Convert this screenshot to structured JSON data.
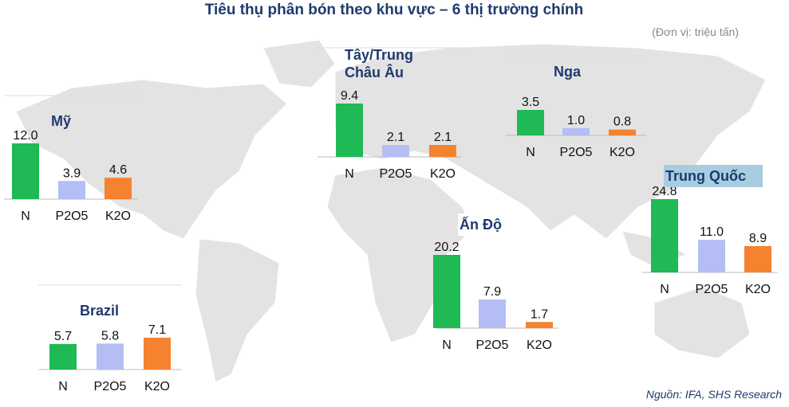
{
  "title": "Tiêu thụ phân bón theo khu vực – 6 thị trường chính",
  "unit": "(Đơn vị: triệu tấn)",
  "source": "Nguồn: IFA, SHS Research",
  "chart_data": [
    {
      "type": "bar",
      "title": "Mỹ",
      "categories": [
        "N",
        "P2O5",
        "K2O"
      ],
      "values": [
        12.0,
        3.9,
        4.6
      ],
      "value_labels": [
        "12.0",
        "3.9",
        "4.6"
      ],
      "colors": [
        "#1fb956",
        "#b4bef5",
        "#f5822f"
      ]
    },
    {
      "type": "bar",
      "title": "Tây/Trung Châu Âu",
      "categories": [
        "N",
        "P2O5",
        "K2O"
      ],
      "values": [
        9.4,
        2.1,
        2.1
      ],
      "value_labels": [
        "9.4",
        "2.1",
        "2.1"
      ],
      "colors": [
        "#1fb956",
        "#b4bef5",
        "#f5822f"
      ]
    },
    {
      "type": "bar",
      "title": "Nga",
      "categories": [
        "N",
        "P2O5",
        "K2O"
      ],
      "values": [
        3.5,
        1.0,
        0.8
      ],
      "value_labels": [
        "3.5",
        "1.0",
        "0.8"
      ],
      "colors": [
        "#1fb956",
        "#b4bef5",
        "#f5822f"
      ]
    },
    {
      "type": "bar",
      "title": "Trung Quốc",
      "categories": [
        "N",
        "P2O5",
        "K2O"
      ],
      "values": [
        24.8,
        11.0,
        8.9
      ],
      "value_labels": [
        "24.8",
        "11.0",
        "8.9"
      ],
      "colors": [
        "#1fb956",
        "#b4bef5",
        "#f5822f"
      ]
    },
    {
      "type": "bar",
      "title": "Ấn Độ",
      "categories": [
        "N",
        "P2O5",
        "K2O"
      ],
      "values": [
        20.2,
        7.9,
        1.7
      ],
      "value_labels": [
        "20.2",
        "7.9",
        "1.7"
      ],
      "colors": [
        "#1fb956",
        "#b4bef5",
        "#f5822f"
      ]
    },
    {
      "type": "bar",
      "title": "Brazil",
      "categories": [
        "N",
        "P2O5",
        "K2O"
      ],
      "values": [
        5.7,
        5.8,
        7.1
      ],
      "value_labels": [
        "5.7",
        "5.8",
        "7.1"
      ],
      "colors": [
        "#1fb956",
        "#b4bef5",
        "#f5822f"
      ]
    }
  ]
}
